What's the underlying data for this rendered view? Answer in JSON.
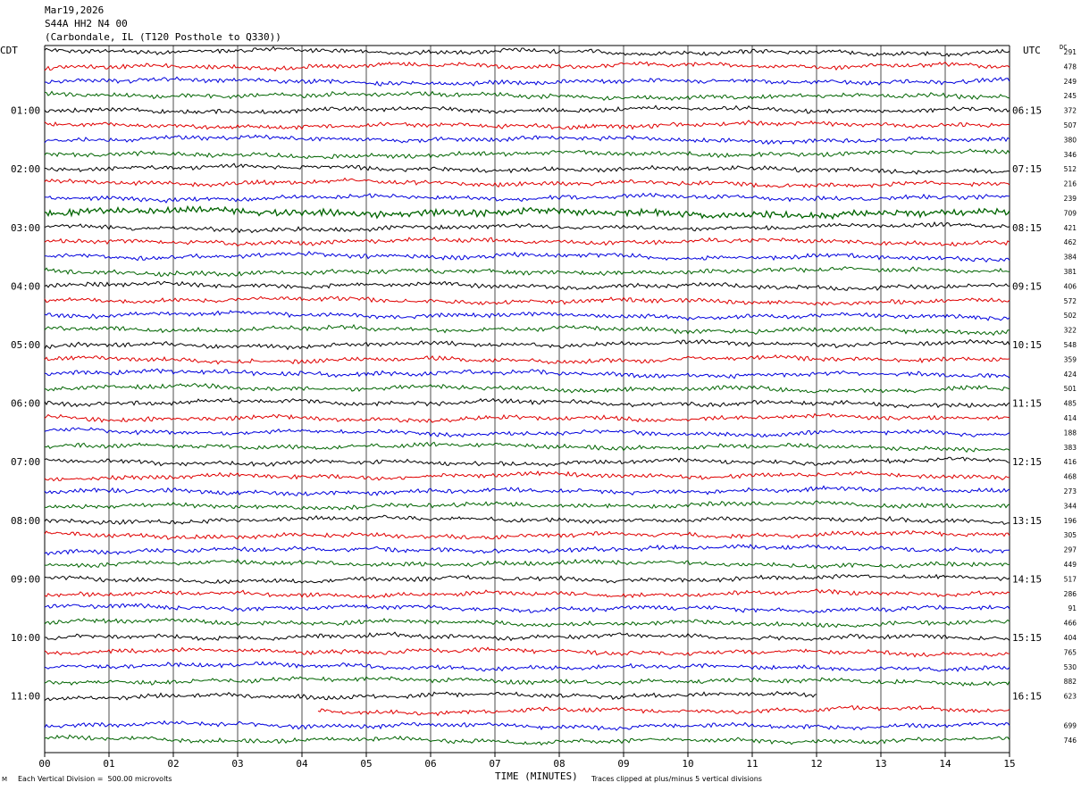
{
  "header": {
    "date": "Mar19,2026",
    "channel": "S44A HH2 N4 00",
    "location": "(Carbondale, IL (T120 Posthole to Q330))"
  },
  "labels": {
    "left_tz": "CDT",
    "right_tz": "UTC",
    "dc": "DC"
  },
  "footer": {
    "scale_note": "Each Vertical Division =  500.00 microvolts",
    "clip_note": "Traces clipped at plus/minus 5 vertical divisions",
    "x_title": "TIME (MINUTES)",
    "corner_mark": "M"
  },
  "colors": {
    "cycle": [
      "#000000",
      "#e00000",
      "#0000dd",
      "#006400"
    ],
    "grid": "#000000"
  },
  "chart_data": {
    "type": "line",
    "title": "S44A HH2 N4 00",
    "xlabel": "TIME (MINUTES)",
    "xlim": [
      0,
      15
    ],
    "x_ticks": [
      "00",
      "01",
      "02",
      "03",
      "04",
      "05",
      "06",
      "07",
      "08",
      "09",
      "10",
      "11",
      "12",
      "13",
      "14",
      "15"
    ],
    "left_hour_labels": [
      "01:00",
      "02:00",
      "03:00",
      "04:00",
      "05:00",
      "06:00",
      "07:00",
      "08:00",
      "09:00",
      "10:00",
      "11:00"
    ],
    "right_hour_labels": [
      "06:15",
      "07:15",
      "08:15",
      "09:15",
      "10:15",
      "11:15",
      "12:15",
      "13:15",
      "14:15",
      "15:15",
      "16:15"
    ],
    "trace_count": 48,
    "dc_offsets": [
      "291",
      "478",
      "249",
      "245",
      "372",
      "507",
      "380",
      "346",
      "512",
      "216",
      "239",
      "709",
      "421",
      "462",
      "384",
      "381",
      "406",
      "572",
      "502",
      "322",
      "548",
      "359",
      "424",
      "501",
      "485",
      "414",
      "188",
      "383",
      "416",
      "468",
      "273",
      "344",
      "196",
      "305",
      "297",
      "449",
      "517",
      "286",
      "91",
      "466",
      "404",
      "765",
      "530",
      "882",
      "623",
      "",
      "699",
      "746"
    ],
    "gaps": [
      {
        "trace": 44,
        "end_minute": 12.0
      },
      {
        "trace": 45,
        "start_minute": 4.25
      }
    ],
    "grid": true,
    "scale_microvolts_per_division": 500.0
  }
}
